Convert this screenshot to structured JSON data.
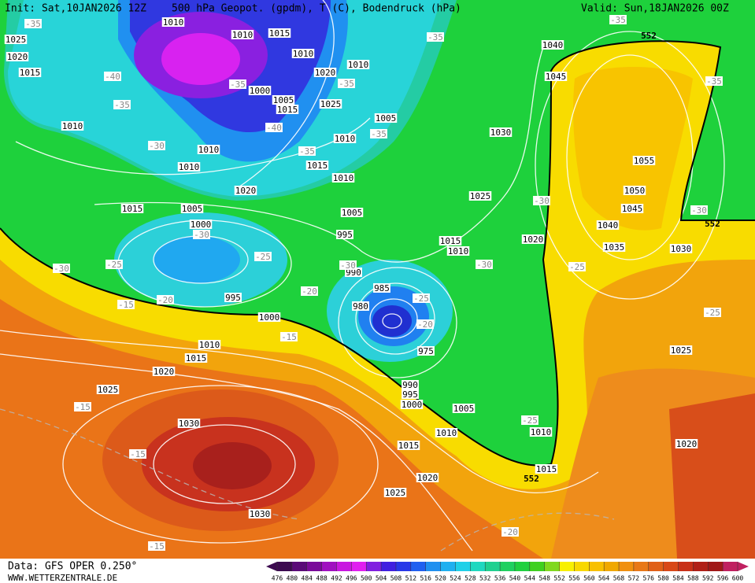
{
  "header": {
    "init": "Init: Sat,10JAN2026 12Z",
    "title": "500 hPa Geopot. (gpdm), T (C), Bodendruck (hPa)",
    "valid": "Valid: Sun,18JAN2026 00Z"
  },
  "footer": {
    "source": "Data: GFS OPER 0.250°",
    "site": "WWW.WETTERZENTRALE.DE"
  },
  "colorbar": {
    "ticks": [
      476,
      480,
      484,
      488,
      492,
      496,
      500,
      504,
      508,
      512,
      516,
      520,
      524,
      528,
      532,
      536,
      540,
      544,
      548,
      552,
      556,
      560,
      564,
      568,
      572,
      576,
      580,
      584,
      588,
      592,
      596,
      600
    ],
    "colors": [
      "#3c0a50",
      "#5a0a78",
      "#7a0a9a",
      "#a010c0",
      "#c818e0",
      "#e020f0",
      "#8020e0",
      "#4020e0",
      "#2838e8",
      "#2060f0",
      "#2090f0",
      "#20b0f0",
      "#20d0e8",
      "#20d8c0",
      "#20d090",
      "#20d060",
      "#20d040",
      "#40d020",
      "#80d820",
      "#f8f000",
      "#f8d800",
      "#f8c000",
      "#f0a800",
      "#f09010",
      "#e87818",
      "#e06018",
      "#d84818",
      "#c83018",
      "#b02018",
      "#a01818",
      "#c02060"
    ]
  },
  "pressure_labels": [
    "1010",
    "1010",
    "1015",
    "1025",
    "1020",
    "1015",
    "1010",
    "1010",
    "1020",
    "1000",
    "1005",
    "1015",
    "1025",
    "1005",
    "1010",
    "1010",
    "1010",
    "1010",
    "1015",
    "1020",
    "1010",
    "1040",
    "1045",
    "1030",
    "1055",
    "1050",
    "1045",
    "1040",
    "1035",
    "1030",
    "1025",
    "1020",
    "1015",
    "1010",
    "1015",
    "1005",
    "1000",
    "1005",
    "995",
    "990",
    "985",
    "980",
    "995",
    "1000",
    "975",
    "1010",
    "1015",
    "1020",
    "1025",
    "990",
    "995",
    "1000",
    "1005",
    "1010",
    "1010",
    "1015",
    "1020",
    "1015",
    "1025",
    "1030",
    "1030",
    "1025",
    "1020"
  ],
  "temperature_labels": [
    "-35",
    "-40",
    "-35",
    "-30",
    "-35",
    "-40",
    "-35",
    "-35",
    "-35",
    "-35",
    "-35",
    "-35",
    "-30",
    "-30",
    "-30",
    "-25",
    "-25",
    "-30",
    "-20",
    "-15",
    "-20",
    "-15",
    "-25",
    "-20",
    "-30",
    "-25",
    "-25",
    "-15",
    "-15",
    "-15",
    "-20",
    "-25",
    "-30"
  ],
  "contour_labels": [
    "552",
    "552",
    "552"
  ]
}
